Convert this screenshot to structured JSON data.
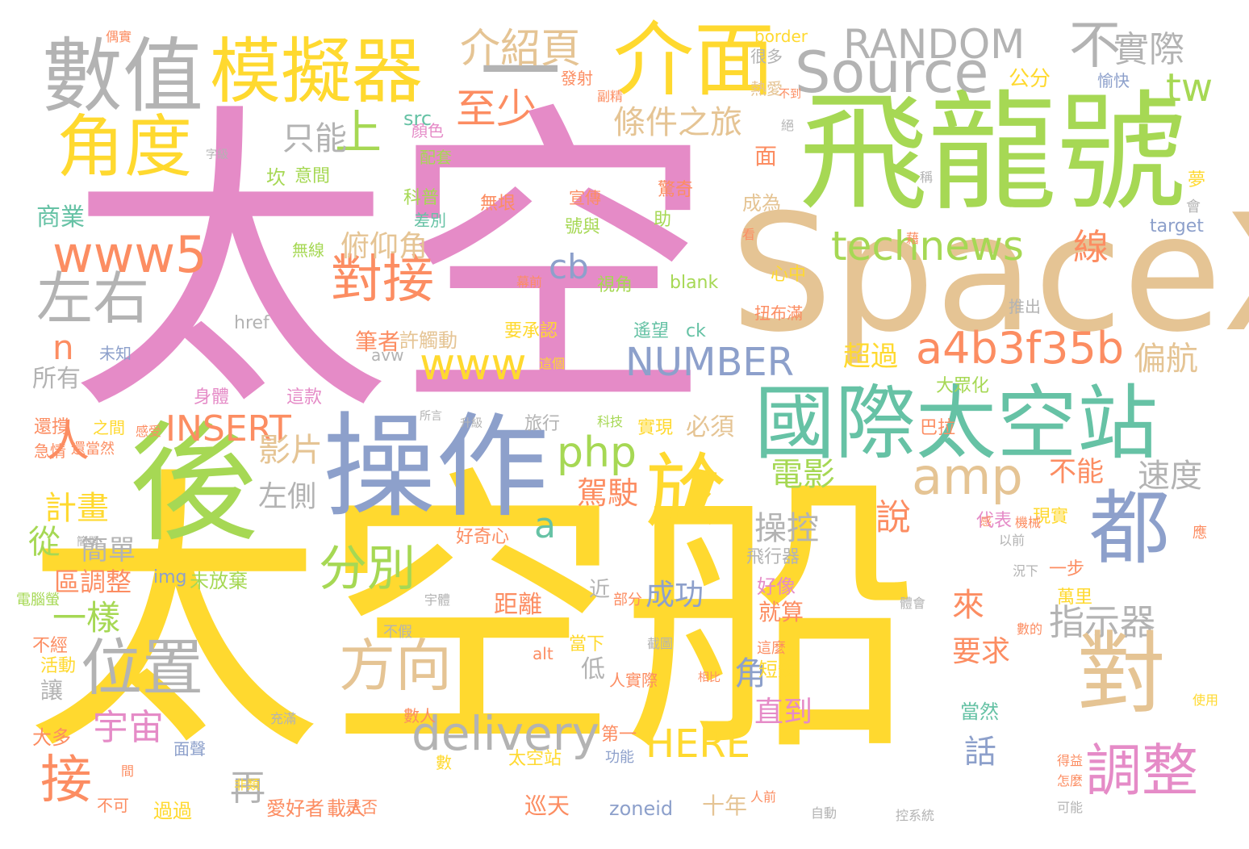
{
  "palette": {
    "pink": "#e58bc7",
    "yellow": "#ffd92f",
    "green": "#a6d854",
    "tan": "#e5c494",
    "blue": "#8da0cb",
    "orange": "#fc8d62",
    "gray": "#b3b3b3",
    "teal": "#66c2a5"
  },
  "words": [
    "太空",
    "太空船",
    "飛龍號",
    "SpaceX",
    "後",
    "操作",
    "國際太空站",
    "數值",
    "模擬器",
    "一",
    "介面",
    "RANDOM",
    "不",
    "實際",
    "Source",
    "角度",
    "至少",
    "tw",
    "上",
    "只能",
    "條件之旅",
    "technews",
    "www5",
    "對接",
    "左右",
    "線",
    "cb",
    "俯仰角",
    "a4b3f35b",
    "偏航",
    "www",
    "NUMBER",
    "n",
    "人",
    "amp",
    "php",
    "INSERT",
    "影片",
    "電影",
    "不能",
    "速度",
    "計畫",
    "左側",
    "a",
    "分別",
    "於",
    "都",
    "說",
    "駕駛",
    "操控",
    "從",
    "簡單",
    "區調整",
    "位置",
    "方向",
    "一樣",
    "來",
    "指示器",
    "成功",
    "對",
    "調整",
    "角",
    "宇宙",
    "delivery",
    "HERE",
    "接",
    "再",
    "要求",
    "直到",
    "話",
    "介紹頁",
    "公分",
    "商業",
    "所有",
    "必須",
    "超過",
    "筆者",
    "許觸動",
    "面",
    "成為",
    "無垠",
    "驚奇",
    "發射",
    "很多",
    "熱愛",
    "愉快",
    "border",
    "target",
    "blank",
    "ck",
    "href",
    "alt",
    "zoneid",
    "img",
    "未放棄",
    "十年",
    "巡天",
    "載人",
    "愛好者",
    "過過",
    "不可",
    "太空站",
    "大多",
    "活動",
    "不經",
    "讓",
    "低",
    "就算",
    "短短",
    "好像",
    "近",
    "當下",
    "距離",
    "一步",
    "萬里",
    "當然",
    "現實",
    "代表",
    "好奇心",
    "飛行器",
    "巴拉",
    "大眾化",
    "實現",
    "旅行",
    "身體",
    "這款",
    "之間",
    "急情",
    "還撐",
    "還當然",
    "坎",
    "意間",
    "科普",
    "配套",
    "顏色",
    "src",
    "差別",
    "號與",
    "助",
    "宣傳",
    "無線",
    "視角",
    "遙望",
    "要承認",
    "未知",
    "avw",
    "心中",
    "推出",
    "扭布滿",
    "科技",
    "所言",
    "升級",
    "以前",
    "機械",
    "第一",
    "功能",
    "數人",
    "人實際",
    "相比",
    "截圖",
    "部分",
    "是否",
    "非類",
    "充滿",
    "面聲",
    "數",
    "間",
    "這麼",
    "怎麼",
    "使用",
    "可能",
    "得益",
    "自動",
    "控系統",
    "人前",
    "電腦螢",
    "這個",
    "感受",
    "偶實",
    "稱",
    "夢",
    "會",
    "看",
    "藉",
    "幕前",
    "副精",
    "絕",
    "字級",
    "不到",
    "不假",
    "宇體",
    "體會",
    "況下",
    "感",
    "應",
    "簡單",
    "數的"
  ]
}
